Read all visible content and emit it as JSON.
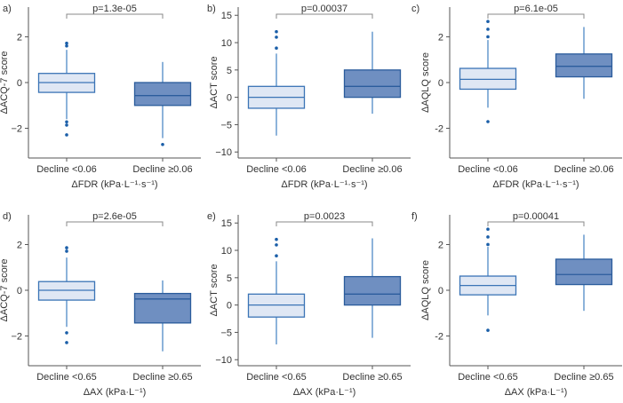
{
  "chart_data": [
    {
      "type": "box",
      "panel": "a)",
      "p_label": "p=1.3e-05",
      "ylabel": "ΔACQ-7 score",
      "xlabel": "ΔFDR (kPa·L⁻¹·s⁻¹)",
      "ylim": [
        -3.3,
        3.3
      ],
      "yticks": [
        2,
        0,
        -2
      ],
      "tick_labels": [
        "2",
        "0",
        "−2"
      ],
      "categories": [
        "Decline <0.06",
        "Decline ≥0.06"
      ],
      "boxes": [
        {
          "whisker_low": -1.6,
          "q1": -0.43,
          "median": 0,
          "q3": 0.4,
          "whisker_high": 1.43,
          "outliers": [
            1.72,
            1.6,
            -1.72,
            -1.86,
            -2.29
          ]
        },
        {
          "whisker_low": -2.43,
          "q1": -1.0,
          "median": -0.57,
          "q3": 0,
          "whisker_high": 0.9,
          "outliers": [
            -2.71
          ]
        }
      ]
    },
    {
      "type": "box",
      "panel": "b)",
      "p_label": "p=0.00037",
      "ylabel": "ΔACT score",
      "xlabel": "ΔFDR (kPa·L⁻¹·s⁻¹)",
      "ylim": [
        -11.1,
        16.5
      ],
      "yticks": [
        15,
        10,
        5,
        0,
        -5,
        -10
      ],
      "tick_labels": [
        "15",
        "10",
        "5",
        "0",
        "−5",
        "−10"
      ],
      "categories": [
        "Decline <0.06",
        "Decline ≥0.06"
      ],
      "boxes": [
        {
          "whisker_low": -7,
          "q1": -2,
          "median": 0,
          "q3": 2,
          "whisker_high": 8,
          "outliers": [
            9,
            11,
            12
          ]
        },
        {
          "whisker_low": -3,
          "q1": 0,
          "median": 2,
          "q3": 5,
          "whisker_high": 12,
          "outliers": []
        }
      ]
    },
    {
      "type": "box",
      "panel": "c)",
      "p_label": "p=6.1e-05",
      "ylabel": "ΔAQLQ score",
      "xlabel": "ΔFDR (kPa·L⁻¹·s⁻¹)",
      "ylim": [
        -3.3,
        3.3
      ],
      "yticks": [
        2,
        0,
        -2
      ],
      "tick_labels": [
        "2",
        "0",
        "-2"
      ],
      "categories": [
        "Decline <0.06",
        "Decline ≥0.06"
      ],
      "boxes": [
        {
          "whisker_low": -1.1,
          "q1": -0.29,
          "median": 0.14,
          "q3": 0.62,
          "whisker_high": 1.86,
          "outliers": [
            2.0,
            2.33,
            2.67,
            -1.71
          ]
        },
        {
          "whisker_low": -0.71,
          "q1": 0.25,
          "median": 0.71,
          "q3": 1.25,
          "whisker_high": 2.43,
          "outliers": []
        }
      ]
    },
    {
      "type": "box",
      "panel": "d)",
      "p_label": "p=2.6e-05",
      "ylabel": "ΔACQ-7 score",
      "xlabel": "ΔAX (kPa·L⁻¹)",
      "ylim": [
        -3.3,
        3.3
      ],
      "yticks": [
        2,
        0,
        -2
      ],
      "tick_labels": [
        "2",
        "0",
        "−2"
      ],
      "categories": [
        "Decline <0.65",
        "Decline ≥0.65"
      ],
      "boxes": [
        {
          "whisker_low": -1.6,
          "q1": -0.43,
          "median": 0,
          "q3": 0.38,
          "whisker_high": 1.43,
          "outliers": [
            1.86,
            1.71,
            -1.86,
            -2.29
          ]
        },
        {
          "whisker_low": -2.67,
          "q1": -1.43,
          "median": -0.38,
          "q3": -0.14,
          "whisker_high": 0.43,
          "outliers": []
        }
      ]
    },
    {
      "type": "box",
      "panel": "e)",
      "p_label": "p=0.0023",
      "ylabel": "ΔACT score",
      "xlabel": "ΔAX (kPa·L⁻¹)",
      "ylim": [
        -11.1,
        16.5
      ],
      "yticks": [
        15,
        10,
        5,
        0,
        -5,
        -10
      ],
      "tick_labels": [
        "15",
        "10",
        "5",
        "0",
        "−5",
        "−10"
      ],
      "categories": [
        "Decline <0.65",
        "Decline ≥0.65"
      ],
      "boxes": [
        {
          "whisker_low": -7.2,
          "q1": -2.2,
          "median": 0,
          "q3": 2,
          "whisker_high": 8,
          "outliers": [
            9,
            11,
            12
          ]
        },
        {
          "whisker_low": -6,
          "q1": 0,
          "median": 2,
          "q3": 5.2,
          "whisker_high": 12.2,
          "outliers": []
        }
      ]
    },
    {
      "type": "box",
      "panel": "f)",
      "p_label": "p=0.00041",
      "ylabel": "ΔAQLQ score",
      "xlabel": "ΔAX (kPa·L⁻¹)",
      "ylim": [
        -3.3,
        3.3
      ],
      "yticks": [
        2,
        0,
        -2
      ],
      "tick_labels": [
        "2",
        "0",
        "-2"
      ],
      "categories": [
        "Decline <0.65",
        "Decline ≥0.65"
      ],
      "boxes": [
        {
          "whisker_low": -1.1,
          "q1": -0.2,
          "median": 0.21,
          "q3": 0.62,
          "whisker_high": 1.9,
          "outliers": [
            2.0,
            2.33,
            2.67,
            -1.75
          ]
        },
        {
          "whisker_low": -0.9,
          "q1": 0.25,
          "median": 0.69,
          "q3": 1.36,
          "whisker_high": 2.43,
          "outliers": []
        }
      ]
    }
  ],
  "colors": {
    "light_fill": "#dfe7f4",
    "light_stroke": "#3b74b6",
    "dark_fill": "#6f8fc1",
    "dark_stroke": "#2b5c9c",
    "whisker": "#8db3da",
    "outlier": "#1a5ea8",
    "axis": "#555555",
    "bracket": "#888888"
  }
}
